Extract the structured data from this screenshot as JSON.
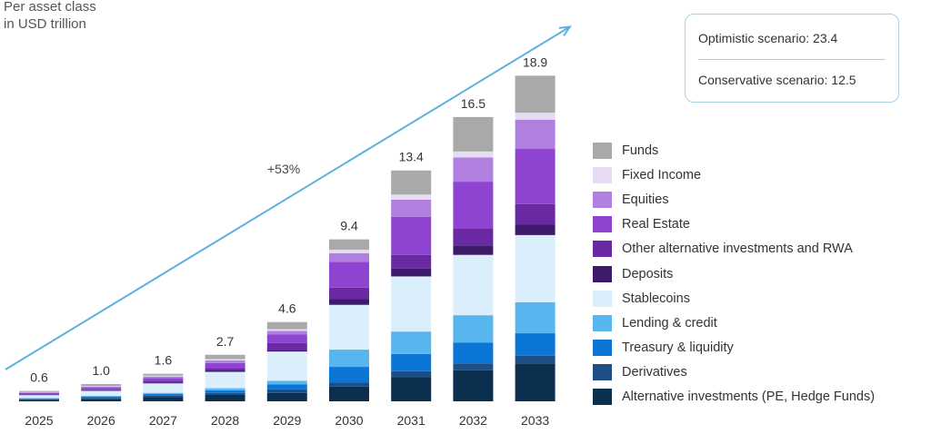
{
  "unit_label_line1": "Per asset class",
  "unit_label_line2": "in USD trillion",
  "scenarios": {
    "optimistic": "Optimistic scenario: 23.4",
    "conservative": "Conservative scenario: 12.5"
  },
  "growth_annotation": "+53%",
  "chart_data": {
    "type": "bar",
    "stacked": true,
    "grid": false,
    "legend_position": "right",
    "categories": [
      "2025",
      "2026",
      "2027",
      "2028",
      "2029",
      "2030",
      "2031",
      "2032",
      "2033"
    ],
    "totals": [
      "0.6",
      "1.0",
      "1.6",
      "2.7",
      "4.6",
      "9.4",
      "13.4",
      "16.5",
      "18.9"
    ],
    "series": [
      {
        "name": "Alternative investments (PE, Hedge Funds)",
        "color": "#0b2f4f",
        "values": [
          0.09,
          0.15,
          0.24,
          0.37,
          0.49,
          0.85,
          1.4,
          1.8,
          2.2
        ]
      },
      {
        "name": "Derivatives",
        "color": "#1d4e85",
        "values": [
          0.03,
          0.05,
          0.08,
          0.12,
          0.2,
          0.25,
          0.35,
          0.4,
          0.45
        ]
      },
      {
        "name": "Treasury & liquidity",
        "color": "#0c76d6",
        "values": [
          0.04,
          0.07,
          0.1,
          0.15,
          0.3,
          0.9,
          1.0,
          1.2,
          1.3
        ]
      },
      {
        "name": "Lending & credit",
        "color": "#58b6ef",
        "values": [
          0.03,
          0.05,
          0.07,
          0.12,
          0.2,
          1.0,
          1.3,
          1.6,
          1.8
        ]
      },
      {
        "name": "Stablecoins",
        "color": "#daeefb",
        "values": [
          0.17,
          0.29,
          0.55,
          0.95,
          1.7,
          2.6,
          3.2,
          3.5,
          3.9
        ]
      },
      {
        "name": "Deposits",
        "color": "#3e1b68",
        "values": [
          0.02,
          0.03,
          0.05,
          0.08,
          0.1,
          0.35,
          0.45,
          0.55,
          0.6
        ]
      },
      {
        "name": "Other alternative investments and RWA",
        "color": "#6a29a3",
        "values": [
          0.04,
          0.06,
          0.1,
          0.15,
          0.4,
          0.65,
          0.8,
          1.0,
          1.2
        ]
      },
      {
        "name": "Real Estate",
        "color": "#8e44d1",
        "values": [
          0.07,
          0.11,
          0.16,
          0.28,
          0.5,
          1.5,
          2.2,
          2.7,
          3.2
        ]
      },
      {
        "name": "Equities",
        "color": "#b07fe0",
        "values": [
          0.03,
          0.05,
          0.09,
          0.15,
          0.2,
          0.5,
          1.0,
          1.4,
          1.7
        ]
      },
      {
        "name": "Fixed Income",
        "color": "#e6dcf4",
        "values": [
          0.02,
          0.03,
          0.05,
          0.08,
          0.1,
          0.2,
          0.3,
          0.35,
          0.4
        ]
      },
      {
        "name": "Funds",
        "color": "#a9a9a9",
        "values": [
          0.06,
          0.11,
          0.11,
          0.25,
          0.41,
          0.6,
          1.4,
          2.0,
          2.15
        ]
      }
    ],
    "ylim": [
      0,
      19.5
    ]
  }
}
